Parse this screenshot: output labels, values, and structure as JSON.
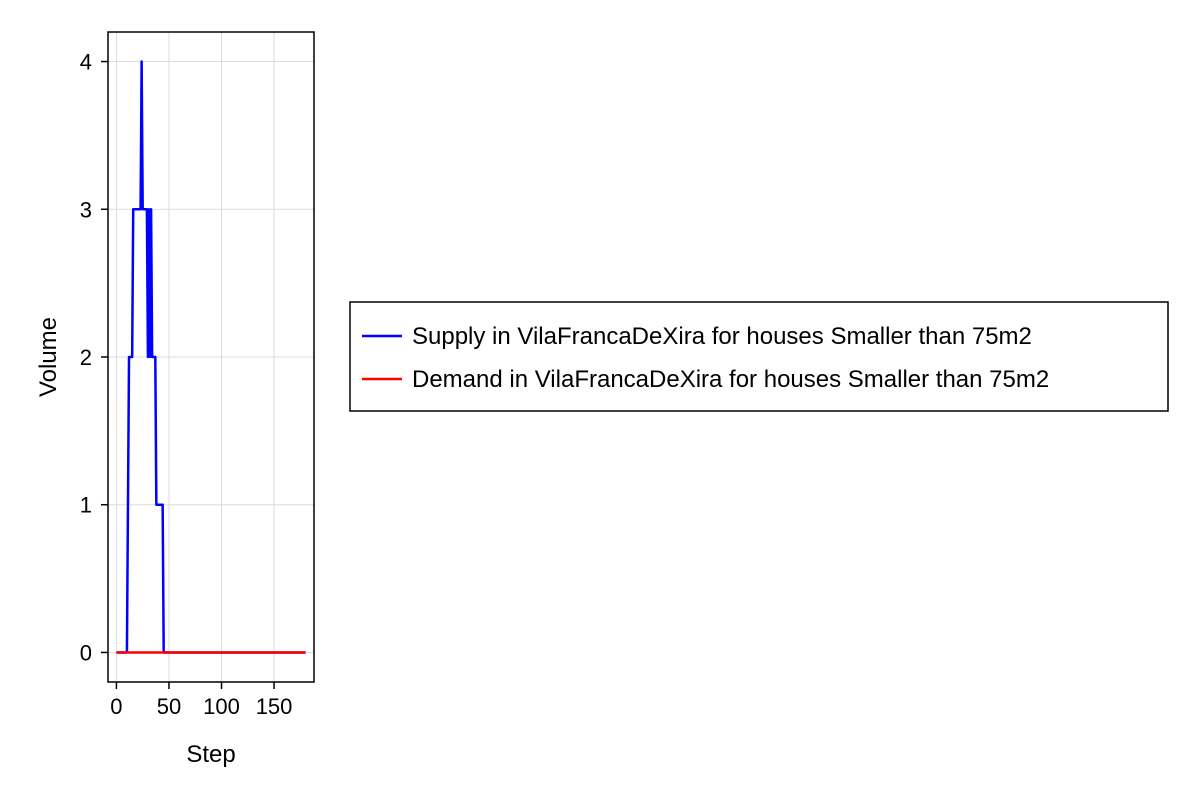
{
  "chart_data": {
    "type": "line",
    "xlabel": "Step",
    "ylabel": "Volume",
    "xlim": [
      -8,
      188
    ],
    "ylim": [
      -0.2,
      4.2
    ],
    "x_ticks": [
      0,
      50,
      100,
      150
    ],
    "y_ticks": [
      0,
      1,
      2,
      3,
      4
    ],
    "grid": true,
    "legend_position": "right",
    "series": [
      {
        "name": "Supply in VilaFrancaDeXira for houses Smaller than 75m2",
        "color": "#0000ff",
        "x": [
          0,
          10,
          11,
          12,
          13,
          14,
          15,
          16,
          17,
          18,
          19,
          20,
          21,
          22,
          23,
          24,
          25,
          26,
          27,
          28,
          29,
          30,
          31,
          32,
          33,
          34,
          35,
          36,
          37,
          38,
          39,
          40,
          41,
          42,
          43,
          44,
          45,
          46,
          47,
          48,
          180
        ],
        "y": [
          0,
          0,
          1,
          2,
          2,
          2,
          2,
          3,
          3,
          3,
          3,
          3,
          3,
          3,
          3,
          4,
          3,
          3,
          3,
          3,
          3,
          2,
          3,
          2,
          3,
          2,
          2,
          2,
          2,
          1,
          1,
          1,
          1,
          1,
          1,
          1,
          0,
          0,
          0,
          0,
          0
        ]
      },
      {
        "name": "Demand in VilaFrancaDeXira for houses Smaller than 75m2",
        "color": "#ff0000",
        "x": [
          0,
          180
        ],
        "y": [
          0,
          0
        ]
      }
    ]
  }
}
